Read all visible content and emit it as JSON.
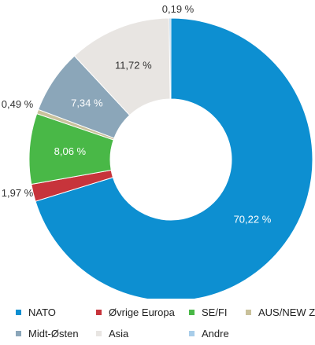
{
  "chart_data": {
    "type": "pie",
    "donut": true,
    "start_angle_deg": 0,
    "direction": "clockwise",
    "slices": [
      {
        "name": "NATO",
        "value": 70.22,
        "label": "70,22 %",
        "color": "#0d8fd1",
        "label_inside": true,
        "label_color": "#ffffff"
      },
      {
        "name": "Øvrige Europa",
        "value": 1.97,
        "label": "1,97 %",
        "color": "#c7343b",
        "label_inside": false,
        "label_color": "#333333"
      },
      {
        "name": "SE/FI",
        "value": 8.06,
        "label": "8,06 %",
        "color": "#49b847",
        "label_inside": true,
        "label_color": "#ffffff"
      },
      {
        "name": "AUS/NEW Z",
        "value": 0.49,
        "label": "0,49 %",
        "color": "#c9c19b",
        "label_inside": false,
        "label_color": "#333333"
      },
      {
        "name": "Midt-Østen",
        "value": 7.34,
        "label": "7,34 %",
        "color": "#8ba6b9",
        "label_inside": true,
        "label_color": "#ffffff"
      },
      {
        "name": "Asia",
        "value": 11.72,
        "label": "11,72 %",
        "color": "#e8e5e2",
        "label_inside": true,
        "label_color": "#333333"
      },
      {
        "name": "Andre",
        "value": 0.19,
        "label": "0,19 %",
        "color": "#a8cde9",
        "label_inside": false,
        "label_color": "#333333"
      }
    ],
    "legend_position": "bottom"
  }
}
